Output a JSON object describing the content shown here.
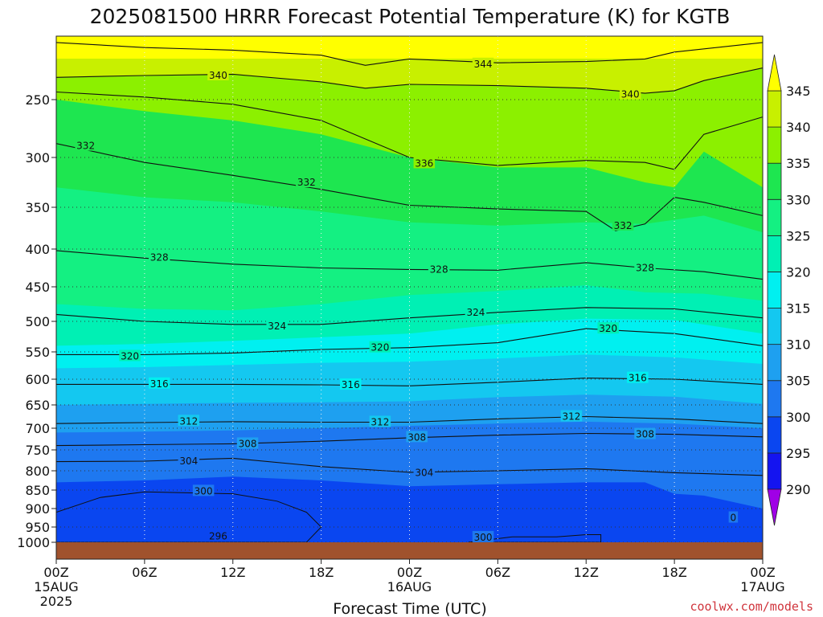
{
  "chart_data": {
    "type": "heatmap",
    "title": "2025081500 HRRR Forecast Potential Temperature (K) for KGTB",
    "xlabel": "Forecast Time (UTC)",
    "ylabel": "",
    "credit": "coolwx.com/models",
    "y_axis": {
      "scale": "pressure (reversed, log-like)",
      "range": [
        1000,
        150
      ],
      "ticks": [
        250,
        300,
        350,
        400,
        450,
        500,
        550,
        600,
        650,
        700,
        750,
        800,
        850,
        900,
        950,
        1000
      ]
    },
    "x_axis": {
      "range_hours": [
        0,
        48
      ],
      "ticks": [
        {
          "hour": 0,
          "label": "00Z",
          "sub1": "15AUG",
          "sub2": "2025"
        },
        {
          "hour": 6,
          "label": "06Z",
          "sub1": "",
          "sub2": ""
        },
        {
          "hour": 12,
          "label": "12Z",
          "sub1": "",
          "sub2": ""
        },
        {
          "hour": 18,
          "label": "18Z",
          "sub1": "",
          "sub2": ""
        },
        {
          "hour": 24,
          "label": "00Z",
          "sub1": "16AUG",
          "sub2": ""
        },
        {
          "hour": 30,
          "label": "06Z",
          "sub1": "",
          "sub2": ""
        },
        {
          "hour": 36,
          "label": "12Z",
          "sub1": "",
          "sub2": ""
        },
        {
          "hour": 42,
          "label": "18Z",
          "sub1": "",
          "sub2": ""
        },
        {
          "hour": 48,
          "label": "00Z",
          "sub1": "17AUG",
          "sub2": ""
        }
      ]
    },
    "grid": true,
    "colorbar": {
      "placement": "right",
      "levels": [
        290,
        295,
        300,
        305,
        310,
        315,
        320,
        325,
        330,
        335,
        340,
        345
      ],
      "colors": [
        "#1e00e0",
        "#1414f0",
        "#0a46f0",
        "#1e78f0",
        "#1ea0f0",
        "#14c8f0",
        "#00f0f0",
        "#00f0b4",
        "#14f082",
        "#1ee650",
        "#8cf000",
        "#c8f000",
        "#ffff00"
      ],
      "below_color": "#a000e6"
    },
    "ground_color": "#a0522d",
    "contour_labels": [
      {
        "value": "340",
        "hour": 11,
        "p": 212
      },
      {
        "value": "344",
        "hour": 29,
        "p": 194
      },
      {
        "value": "340",
        "hour": 39,
        "p": 242
      },
      {
        "value": "332",
        "hour": 2,
        "p": 290
      },
      {
        "value": "336",
        "hour": 25,
        "p": 306
      },
      {
        "value": "332",
        "hour": 17,
        "p": 325
      },
      {
        "value": "332",
        "hour": 38.5,
        "p": 372
      },
      {
        "value": "328",
        "hour": 7,
        "p": 411
      },
      {
        "value": "328",
        "hour": 26,
        "p": 427
      },
      {
        "value": "328",
        "hour": 40,
        "p": 425
      },
      {
        "value": "324",
        "hour": 28.5,
        "p": 487
      },
      {
        "value": "324",
        "hour": 15,
        "p": 508
      },
      {
        "value": "320",
        "hour": 37.5,
        "p": 512
      },
      {
        "value": "320",
        "hour": 22,
        "p": 543
      },
      {
        "value": "320",
        "hour": 5,
        "p": 558
      },
      {
        "value": "316",
        "hour": 39.5,
        "p": 598
      },
      {
        "value": "316",
        "hour": 7,
        "p": 609
      },
      {
        "value": "316",
        "hour": 20,
        "p": 611
      },
      {
        "value": "312",
        "hour": 35,
        "p": 675
      },
      {
        "value": "312",
        "hour": 9,
        "p": 685
      },
      {
        "value": "312",
        "hour": 22,
        "p": 687
      },
      {
        "value": "308",
        "hour": 24.5,
        "p": 721
      },
      {
        "value": "308",
        "hour": 40,
        "p": 714
      },
      {
        "value": "308",
        "hour": 13,
        "p": 736
      },
      {
        "value": "304",
        "hour": 9,
        "p": 777
      },
      {
        "value": "304",
        "hour": 25,
        "p": 805
      },
      {
        "value": "300",
        "hour": 10,
        "p": 853
      },
      {
        "value": "0",
        "hour": 46,
        "p": 925
      },
      {
        "value": "300",
        "hour": 29,
        "p": 984
      },
      {
        "value": "296",
        "hour": 11,
        "p": 980
      }
    ],
    "isentropes": [
      {
        "theta": 344,
        "x": [
          0,
          6,
          12,
          18,
          21,
          24,
          30,
          36,
          40,
          42,
          48
        ],
        "p": [
          160,
          168,
          172,
          180,
          196,
          186,
          192,
          190,
          186,
          175,
          160
        ]
      },
      {
        "theta": 340,
        "x": [
          0,
          6,
          12,
          18,
          21,
          24,
          30,
          36,
          40,
          42,
          44,
          48
        ],
        "p": [
          215,
          212,
          210,
          222,
          232,
          226,
          228,
          232,
          240,
          236,
          220,
          200
        ]
      },
      {
        "theta": 336,
        "x": [
          0,
          6,
          12,
          18,
          24,
          30,
          36,
          40,
          42,
          44,
          48
        ],
        "p": [
          238,
          246,
          254,
          268,
          300,
          308,
          303,
          305,
          312,
          280,
          265
        ]
      },
      {
        "theta": 332,
        "x": [
          0,
          6,
          12,
          18,
          24,
          30,
          36,
          38,
          40,
          42,
          44,
          48
        ],
        "p": [
          288,
          305,
          318,
          332,
          348,
          352,
          355,
          378,
          370,
          340,
          345,
          360
        ]
      },
      {
        "theta": 328,
        "x": [
          0,
          6,
          12,
          18,
          24,
          30,
          36,
          40,
          44,
          48
        ],
        "p": [
          402,
          412,
          420,
          425,
          427,
          428,
          418,
          425,
          430,
          440
        ]
      },
      {
        "theta": 324,
        "x": [
          0,
          6,
          12,
          18,
          24,
          30,
          36,
          42,
          48
        ],
        "p": [
          490,
          500,
          505,
          505,
          495,
          487,
          480,
          482,
          495
        ]
      },
      {
        "theta": 320,
        "x": [
          0,
          6,
          12,
          18,
          24,
          30,
          36,
          42,
          48
        ],
        "p": [
          555,
          555,
          552,
          546,
          543,
          535,
          512,
          520,
          540
        ]
      },
      {
        "theta": 316,
        "x": [
          0,
          6,
          12,
          18,
          24,
          30,
          36,
          42,
          48
        ],
        "p": [
          610,
          610,
          610,
          611,
          613,
          606,
          598,
          600,
          610
        ]
      },
      {
        "theta": 312,
        "x": [
          0,
          6,
          12,
          18,
          24,
          30,
          36,
          42,
          48
        ],
        "p": [
          690,
          688,
          686,
          687,
          687,
          680,
          675,
          680,
          690
        ]
      },
      {
        "theta": 308,
        "x": [
          0,
          6,
          12,
          18,
          24,
          30,
          36,
          42,
          48
        ],
        "p": [
          740,
          738,
          736,
          730,
          722,
          716,
          712,
          714,
          720
        ]
      },
      {
        "theta": 304,
        "x": [
          0,
          6,
          12,
          18,
          24,
          30,
          36,
          42,
          48
        ],
        "p": [
          778,
          777,
          770,
          790,
          804,
          800,
          795,
          805,
          812
        ]
      }
    ],
    "bands": [
      {
        "theta_min": 340,
        "x": [
          0,
          6,
          12,
          18,
          21,
          24,
          30,
          36,
          40,
          42,
          44,
          48
        ],
        "p": [
          215,
          212,
          210,
          222,
          232,
          226,
          228,
          232,
          240,
          236,
          220,
          200
        ]
      },
      {
        "theta_min": 335,
        "x": [
          0,
          6,
          12,
          18,
          24,
          30,
          36,
          40,
          42,
          44,
          48
        ],
        "p": [
          250,
          260,
          268,
          280,
          300,
          310,
          310,
          325,
          330,
          295,
          330
        ]
      },
      {
        "theta_min": 330,
        "x": [
          0,
          6,
          12,
          18,
          24,
          30,
          36,
          40,
          44,
          48
        ],
        "p": [
          330,
          340,
          345,
          355,
          368,
          372,
          368,
          370,
          360,
          380
        ]
      },
      {
        "theta_min": 325,
        "x": [
          0,
          6,
          12,
          18,
          24,
          30,
          36,
          40,
          44,
          48
        ],
        "p": [
          475,
          482,
          484,
          475,
          462,
          456,
          448,
          458,
          460,
          470
        ]
      },
      {
        "theta_min": 320,
        "x": [
          0,
          6,
          12,
          18,
          24,
          30,
          36,
          42,
          48
        ],
        "p": [
          540,
          537,
          532,
          526,
          520,
          505,
          496,
          498,
          520
        ]
      },
      {
        "theta_min": 315,
        "x": [
          0,
          6,
          12,
          18,
          24,
          30,
          36,
          42,
          48
        ],
        "p": [
          580,
          578,
          574,
          570,
          568,
          562,
          555,
          560,
          572
        ]
      },
      {
        "theta_min": 310,
        "x": [
          0,
          6,
          12,
          18,
          24,
          30,
          36,
          42,
          48
        ],
        "p": [
          650,
          648,
          646,
          645,
          643,
          635,
          630,
          634,
          648
        ]
      },
      {
        "theta_min": 305,
        "x": [
          0,
          6,
          12,
          18,
          24,
          30,
          36,
          42,
          48
        ],
        "p": [
          710,
          708,
          705,
          700,
          695,
          690,
          686,
          690,
          700
        ]
      },
      {
        "theta_min": 300,
        "x": [
          0,
          6,
          12,
          18,
          24,
          30,
          36,
          40,
          42,
          44,
          48
        ],
        "p": [
          830,
          825,
          815,
          825,
          840,
          835,
          830,
          830,
          860,
          865,
          900
        ]
      }
    ],
    "cold_pools": [
      {
        "theta": 295,
        "x": [
          0,
          3,
          6,
          12,
          15,
          17,
          18,
          17,
          12,
          6,
          0
        ],
        "p": [
          910,
          870,
          855,
          860,
          880,
          910,
          950,
          1000,
          1000,
          1000,
          1000
        ]
      },
      {
        "theta": 295,
        "x": [
          28,
          31,
          34,
          36,
          37,
          37,
          28
        ],
        "p": [
          1000,
          982,
          982,
          975,
          975,
          1000,
          1000
        ]
      }
    ]
  }
}
